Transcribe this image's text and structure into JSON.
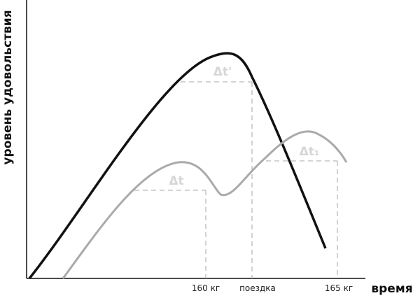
{
  "y_axis_label": "уровень удовольствия",
  "x_axis_label": "время",
  "x_labels": [
    "160 кг",
    "поездка",
    "165 кг"
  ],
  "intervals": [
    "Δt'",
    "Δt",
    "Δt₁"
  ]
}
